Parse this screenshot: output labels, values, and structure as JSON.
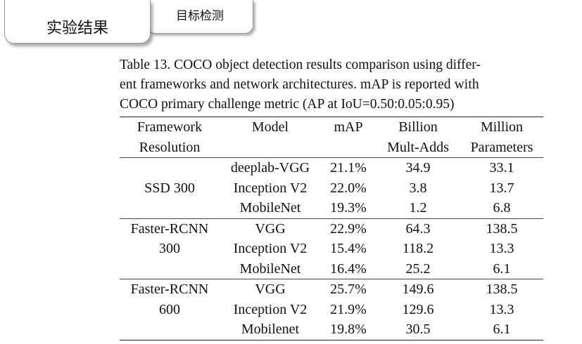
{
  "tabs": {
    "active_label": "实验结果",
    "inactive_label": "目标检测"
  },
  "caption": {
    "line1": "Table 13. COCO object detection results comparison using differ-",
    "line2": "ent frameworks and network architectures. mAP is reported with",
    "line3": "COCO primary challenge metric (AP at IoU=0.50:0.05:0.95)"
  },
  "table": {
    "header": {
      "framework_top": "Framework",
      "framework_bottom": "Resolution",
      "model": "Model",
      "map": "mAP",
      "mult_top": "Billion",
      "mult_bottom": "Mult-Adds",
      "params_top": "Million",
      "params_bottom": "Parameters"
    },
    "groups": [
      {
        "label_top": "",
        "label_mid": "SSD 300",
        "rows": [
          {
            "model": "deeplab-VGG",
            "map": "21.1%",
            "mult": "34.9",
            "params": "33.1"
          },
          {
            "model": "Inception V2",
            "map": "22.0%",
            "mult": "3.8",
            "params": "13.7"
          },
          {
            "model": "MobileNet",
            "map": "19.3%",
            "mult": "1.2",
            "params": "6.8"
          }
        ]
      },
      {
        "label_top": "Faster-RCNN",
        "label_mid": "300",
        "rows": [
          {
            "model": "VGG",
            "map": "22.9%",
            "mult": "64.3",
            "params": "138.5"
          },
          {
            "model": "Inception V2",
            "map": "15.4%",
            "mult": "118.2",
            "params": "13.3"
          },
          {
            "model": "MobileNet",
            "map": "16.4%",
            "mult": "25.2",
            "params": "6.1"
          }
        ]
      },
      {
        "label_top": "Faster-RCNN",
        "label_mid": "600",
        "rows": [
          {
            "model": "VGG",
            "map": "25.7%",
            "mult": "149.6",
            "params": "138.5"
          },
          {
            "model": "Inception V2",
            "map": "21.9%",
            "mult": "129.6",
            "params": "13.3"
          },
          {
            "model": "Mobilenet",
            "map": "19.8%",
            "mult": "30.5",
            "params": "6.1"
          }
        ]
      }
    ]
  }
}
